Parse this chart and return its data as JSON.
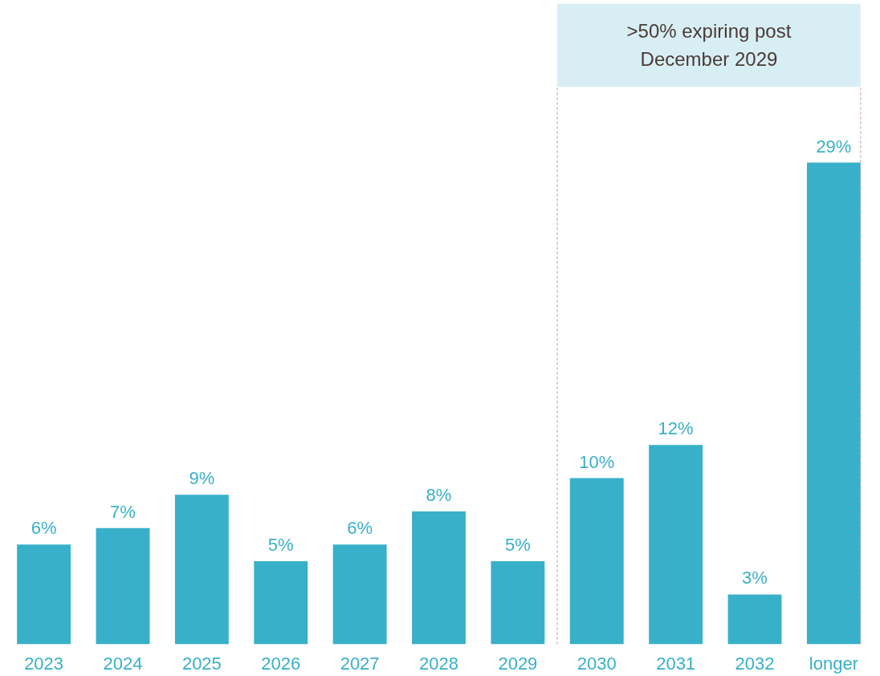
{
  "chart_data": {
    "type": "bar",
    "categories": [
      "2023",
      "2024",
      "2025",
      "2026",
      "2027",
      "2028",
      "2029",
      "2030",
      "2031",
      "2032",
      "longer"
    ],
    "values": [
      6,
      7,
      9,
      5,
      6,
      8,
      5,
      10,
      12,
      3,
      29
    ],
    "value_labels": [
      "6%",
      "7%",
      "9%",
      "5%",
      "6%",
      "8%",
      "5%",
      "10%",
      "12%",
      "3%",
      "29%"
    ],
    "color": "#38b0c9",
    "tick_labels": "x",
    "grid": false,
    "annotations": [
      ">50% expiring post\nDecember 2029"
    ]
  }
}
